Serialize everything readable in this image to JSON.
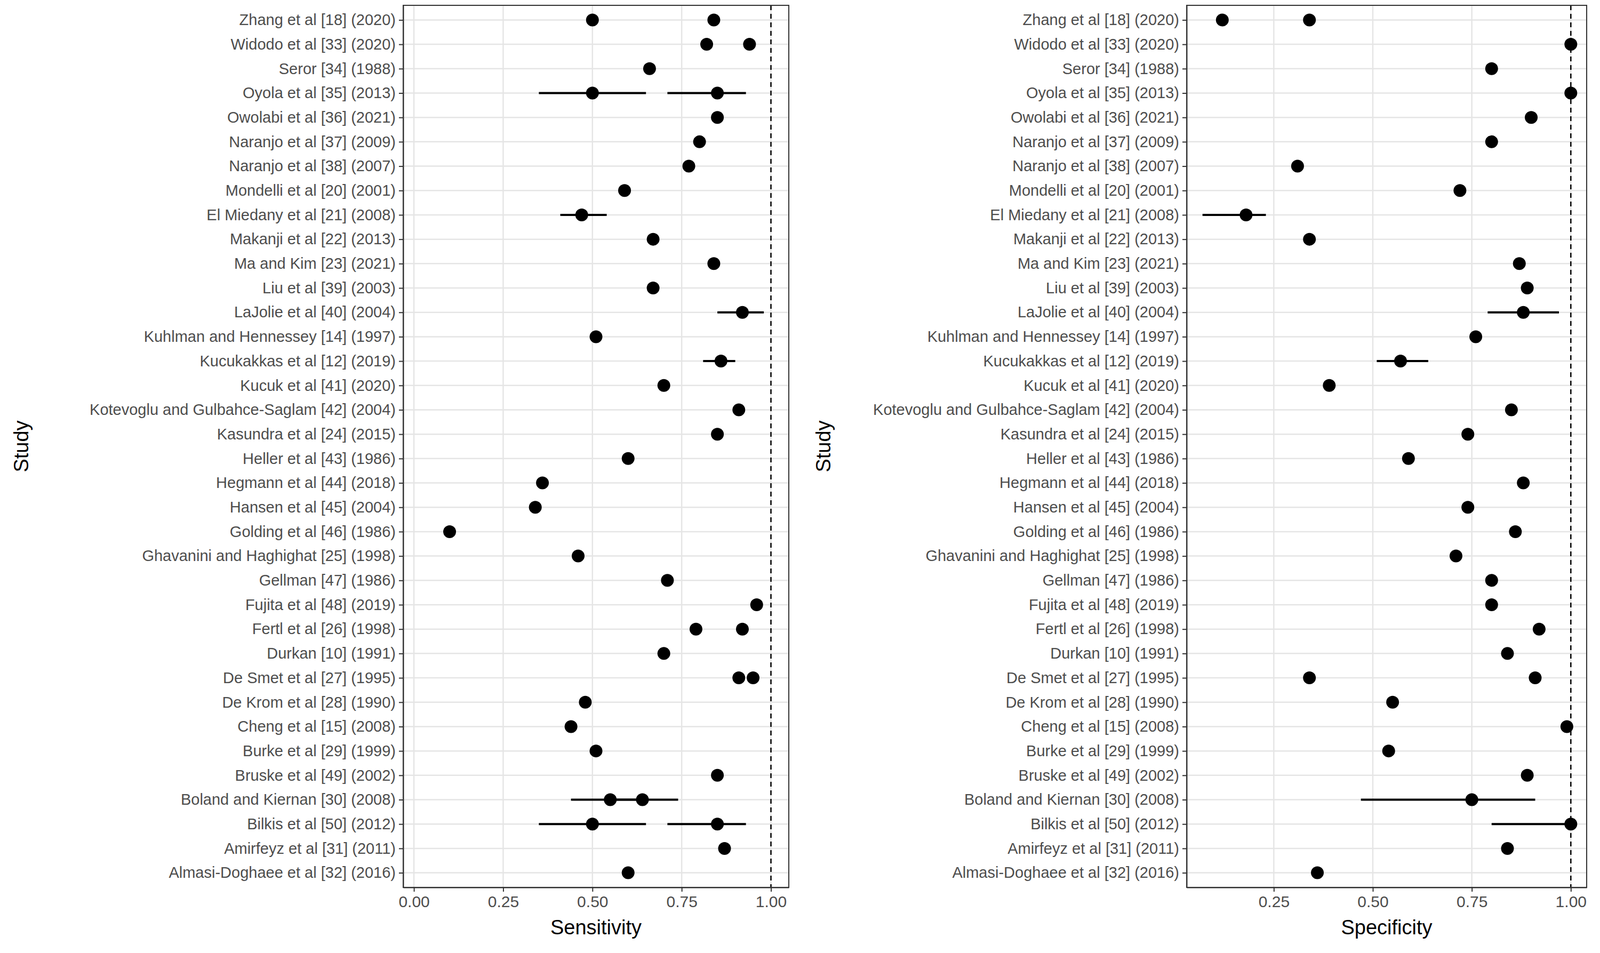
{
  "chart_data": [
    {
      "type": "scatter",
      "x_label": "Sensitivity",
      "y_label": "Study",
      "categories": [
        "Zhang et al [18] (2020)",
        "Widodo et al [33] (2020)",
        "Seror [34] (1988)",
        "Oyola et al [35] (2013)",
        "Owolabi et al [36] (2021)",
        "Naranjo et al [37] (2009)",
        "Naranjo et al [38] (2007)",
        "Mondelli et al [20] (2001)",
        "El Miedany et al [21] (2008)",
        "Makanji et al [22] (2013)",
        "Ma and Kim [23] (2021)",
        "Liu et al [39] (2003)",
        "LaJolie et al [40] (2004)",
        "Kuhlman and Hennessey [14] (1997)",
        "Kucukakkas et al [12] (2019)",
        "Kucuk et al [41] (2020)",
        "Kotevoglu and Gulbahce-Saglam [42] (2004)",
        "Kasundra et al [24] (2015)",
        "Heller et al [43] (1986)",
        "Hegmann et al [44] (2018)",
        "Hansen et al [45] (2004)",
        "Golding et al [46] (1986)",
        "Ghavanini and Haghighat [25] (1998)",
        "Gellman [47] (1986)",
        "Fujita et al [48] (2019)",
        "Fertl et al [26] (1998)",
        "Durkan [10] (1991)",
        "De Smet et al [27] (1995)",
        "De Krom et al [28] (1990)",
        "Cheng et al [15] (2008)",
        "Burke et al [29] (1999)",
        "Bruske et al [49] (2002)",
        "Boland and Kiernan [30] (2008)",
        "Bilkis et al [50] (2012)",
        "Amirfeyz et al [31] (2011)",
        "Almasi-Doghaee et al [32] (2016)"
      ],
      "series": [
        {
          "color": "#000000",
          "marker": "circle",
          "values": [
            0.5,
            0.82,
            0.66,
            0.5,
            0.85,
            0.8,
            0.77,
            0.59,
            0.47,
            0.67,
            0.84,
            0.67,
            0.92,
            0.51,
            0.86,
            0.7,
            0.91,
            0.85,
            0.6,
            0.36,
            0.34,
            0.1,
            0.46,
            0.71,
            0.96,
            0.79,
            0.7,
            0.91,
            0.48,
            0.44,
            0.51,
            0.85,
            0.55,
            0.5,
            0.87,
            0.6
          ],
          "lower": [
            null,
            null,
            null,
            0.35,
            null,
            null,
            null,
            null,
            0.41,
            null,
            null,
            null,
            0.85,
            null,
            0.81,
            null,
            null,
            null,
            null,
            null,
            null,
            null,
            null,
            null,
            null,
            null,
            null,
            null,
            null,
            null,
            null,
            null,
            0.44,
            0.35,
            null,
            null
          ],
          "upper": [
            null,
            null,
            null,
            0.65,
            null,
            null,
            null,
            null,
            0.54,
            null,
            null,
            null,
            0.98,
            null,
            0.9,
            null,
            null,
            null,
            null,
            null,
            null,
            null,
            null,
            null,
            null,
            null,
            null,
            null,
            null,
            null,
            null,
            null,
            0.65,
            0.65,
            null,
            null
          ]
        },
        {
          "color": "#000000",
          "marker": "circle",
          "values": [
            0.84,
            0.94,
            null,
            0.85,
            null,
            null,
            null,
            null,
            null,
            null,
            null,
            null,
            null,
            null,
            null,
            null,
            null,
            null,
            null,
            null,
            null,
            null,
            null,
            null,
            null,
            0.92,
            null,
            0.95,
            null,
            null,
            null,
            null,
            0.64,
            0.85,
            null,
            null
          ],
          "lower": [
            null,
            null,
            null,
            0.71,
            null,
            null,
            null,
            null,
            null,
            null,
            null,
            null,
            null,
            null,
            null,
            null,
            null,
            null,
            null,
            null,
            null,
            null,
            null,
            null,
            null,
            null,
            null,
            null,
            null,
            null,
            null,
            null,
            0.55,
            0.71,
            null,
            null
          ],
          "upper": [
            null,
            null,
            null,
            0.93,
            null,
            null,
            null,
            null,
            null,
            null,
            null,
            null,
            null,
            null,
            null,
            null,
            null,
            null,
            null,
            null,
            null,
            null,
            null,
            null,
            null,
            null,
            null,
            null,
            null,
            null,
            null,
            null,
            0.74,
            0.93,
            null,
            null
          ]
        }
      ],
      "xlim": [
        -0.03,
        1.05
      ],
      "xticks": [
        {
          "value": 0,
          "label": "0.00"
        },
        0.25,
        {
          "value": 0.5,
          "label": "0.50"
        },
        0.75,
        {
          "value": 1,
          "label": "1.00"
        }
      ],
      "reference_line": 1,
      "grid": true
    },
    {
      "type": "scatter",
      "x_label": "Specificity",
      "y_label": "Study",
      "categories": [
        "Zhang et al [18] (2020)",
        "Widodo et al [33] (2020)",
        "Seror [34] (1988)",
        "Oyola et al [35] (2013)",
        "Owolabi et al [36] (2021)",
        "Naranjo et al [37] (2009)",
        "Naranjo et al [38] (2007)",
        "Mondelli et al [20] (2001)",
        "El Miedany et al [21] (2008)",
        "Makanji et al [22] (2013)",
        "Ma and Kim [23] (2021)",
        "Liu et al [39] (2003)",
        "LaJolie et al [40] (2004)",
        "Kuhlman and Hennessey [14] (1997)",
        "Kucukakkas et al [12] (2019)",
        "Kucuk et al [41] (2020)",
        "Kotevoglu and Gulbahce-Saglam [42] (2004)",
        "Kasundra et al [24] (2015)",
        "Heller et al [43] (1986)",
        "Hegmann et al [44] (2018)",
        "Hansen et al [45] (2004)",
        "Golding et al [46] (1986)",
        "Ghavanini and Haghighat [25] (1998)",
        "Gellman [47] (1986)",
        "Fujita et al [48] (2019)",
        "Fertl et al [26] (1998)",
        "Durkan [10] (1991)",
        "De Smet et al [27] (1995)",
        "De Krom et al [28] (1990)",
        "Cheng et al [15] (2008)",
        "Burke et al [29] (1999)",
        "Bruske et al [49] (2002)",
        "Boland and Kiernan [30] (2008)",
        "Bilkis et al [50] (2012)",
        "Amirfeyz et al [31] (2011)",
        "Almasi-Doghaee et al [32] (2016)"
      ],
      "series": [
        {
          "color": "#000000",
          "marker": "circle",
          "values": [
            0.12,
            1,
            0.8,
            1,
            0.9,
            0.8,
            0.31,
            0.72,
            0.18,
            0.34,
            0.87,
            0.89,
            0.88,
            0.76,
            0.57,
            0.39,
            0.85,
            0.74,
            0.59,
            0.88,
            0.74,
            0.86,
            0.71,
            0.8,
            0.8,
            0.92,
            0.84,
            0.34,
            0.55,
            0.99,
            0.54,
            0.89,
            0.75,
            1,
            0.84,
            0.36
          ],
          "lower": [
            null,
            null,
            null,
            null,
            null,
            null,
            null,
            null,
            0.07,
            null,
            null,
            null,
            0.79,
            null,
            0.51,
            null,
            null,
            null,
            null,
            null,
            null,
            null,
            null,
            null,
            null,
            null,
            null,
            null,
            null,
            null,
            null,
            null,
            0.47,
            0.8,
            null,
            null
          ],
          "upper": [
            null,
            null,
            null,
            null,
            null,
            null,
            null,
            null,
            0.23,
            null,
            null,
            null,
            0.97,
            null,
            0.64,
            null,
            null,
            null,
            null,
            null,
            null,
            null,
            null,
            null,
            null,
            null,
            null,
            null,
            null,
            null,
            null,
            null,
            0.91,
            1,
            null,
            null
          ]
        },
        {
          "color": "#000000",
          "marker": "circle",
          "values": [
            0.34,
            null,
            null,
            null,
            null,
            null,
            null,
            null,
            null,
            null,
            null,
            null,
            null,
            null,
            null,
            null,
            null,
            null,
            null,
            null,
            null,
            null,
            null,
            null,
            null,
            null,
            null,
            0.91,
            null,
            null,
            null,
            null,
            null,
            null,
            null,
            null
          ]
        }
      ],
      "xlim": [
        0.03,
        1.04
      ],
      "xticks": [
        0.25,
        {
          "value": 0.5,
          "label": "0.50"
        },
        0.75,
        {
          "value": 1,
          "label": "1.00"
        }
      ],
      "reference_line": 1,
      "grid": true
    }
  ]
}
